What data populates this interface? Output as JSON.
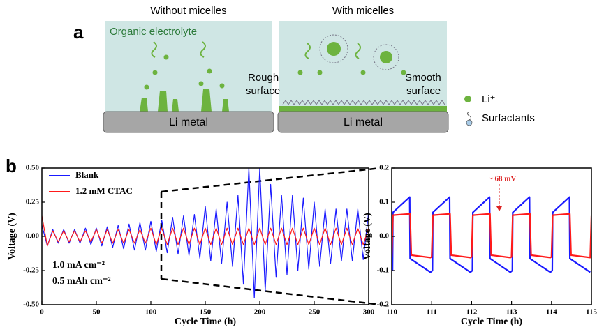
{
  "diagram": {
    "label_a": "a",
    "label_b": "b",
    "left_panel": {
      "title": "Without micelles",
      "electrolyte": "Organic electrolyte",
      "surface": [
        "Rough",
        "surface"
      ],
      "substrate": "Li metal"
    },
    "right_panel": {
      "title": "With micelles",
      "surface": [
        "Smooth",
        "surface"
      ],
      "substrate": "Li metal"
    },
    "legend": {
      "ion": "Li⁺",
      "surfactant": "Surfactants"
    }
  },
  "chart_data": [
    {
      "type": "line",
      "x_label": "Cycle Time (h)",
      "y_label": "Voltage (V)",
      "annotations": [
        "1.0 mA cm⁻²",
        "0.5 mAh cm⁻²"
      ],
      "x": [
        0,
        5,
        10,
        15,
        20,
        25,
        30,
        35,
        40,
        45,
        50,
        55,
        60,
        65,
        70,
        75,
        80,
        85,
        90,
        95,
        100,
        105,
        110,
        115,
        120,
        125,
        130,
        135,
        140,
        145,
        150,
        155,
        160,
        165,
        170,
        175,
        180,
        185,
        190,
        195,
        200,
        205,
        210,
        215,
        220,
        225,
        230,
        235,
        240,
        245,
        250,
        255,
        260,
        265,
        270,
        275,
        280,
        285,
        290,
        295,
        300
      ],
      "series": [
        {
          "name": "Blank",
          "color": "#1a1aff",
          "values": [
            0.08,
            -0.07,
            0.05,
            -0.05,
            0.05,
            -0.05,
            0.05,
            -0.05,
            0.06,
            -0.06,
            0.06,
            -0.07,
            0.07,
            -0.08,
            0.08,
            -0.09,
            0.09,
            -0.1,
            0.1,
            -0.1,
            0.11,
            -0.11,
            0.12,
            -0.12,
            0.14,
            -0.13,
            0.15,
            -0.14,
            0.16,
            -0.16,
            0.22,
            -0.18,
            0.2,
            -0.2,
            0.25,
            -0.22,
            0.3,
            -0.35,
            0.5,
            -0.45,
            0.5,
            -0.4,
            0.38,
            -0.3,
            0.3,
            -0.28,
            0.3,
            -0.25,
            0.28,
            -0.24,
            0.25,
            -0.22,
            0.2,
            -0.2,
            0.2,
            -0.18,
            0.2,
            -0.18,
            0.2,
            -0.17,
            0.18
          ]
        },
        {
          "name": "1.2 mM CTAC",
          "color": "#ff1a1a",
          "values": [
            0.15,
            -0.07,
            0.04,
            -0.04,
            0.04,
            -0.04,
            0.04,
            -0.04,
            0.04,
            -0.04,
            0.05,
            -0.05,
            0.05,
            -0.05,
            0.05,
            -0.05,
            0.05,
            -0.05,
            0.05,
            -0.05,
            0.06,
            -0.06,
            0.06,
            -0.06,
            0.06,
            -0.06,
            0.06,
            -0.06,
            0.06,
            -0.06,
            0.06,
            -0.06,
            0.06,
            -0.06,
            0.06,
            -0.06,
            0.06,
            -0.06,
            0.06,
            -0.06,
            0.06,
            -0.06,
            0.06,
            -0.06,
            0.06,
            -0.06,
            0.06,
            -0.06,
            0.06,
            -0.06,
            0.06,
            -0.06,
            0.06,
            -0.06,
            0.06,
            -0.06,
            0.06,
            -0.06,
            0.06,
            -0.06,
            0.06
          ]
        }
      ],
      "xlim": [
        0,
        300
      ],
      "xticks": [
        0,
        50,
        100,
        150,
        200,
        250,
        300
      ],
      "ylim": [
        -0.5,
        0.5
      ],
      "yticks": [
        {
          "value": -0.5,
          "label": "-0.50"
        },
        {
          "value": -0.25,
          "label": "-0.25"
        },
        {
          "value": 0,
          "label": "0.00"
        },
        {
          "value": 0.25,
          "label": "0.25"
        },
        {
          "value": 0.5,
          "label": "0.50"
        }
      ],
      "legend": "upper left"
    },
    {
      "type": "line",
      "x_label": "Cycle Time (h)",
      "y_label": "Voltage (V)",
      "annotations": [
        "~ 68 mV"
      ],
      "series": [
        {
          "color": "#1a1aff",
          "x": [
            110.02,
            110.03,
            110.45,
            110.46,
            110.97,
            111.02,
            111.03,
            111.45,
            111.46,
            111.97,
            112.02,
            112.03,
            112.45,
            112.46,
            112.97,
            113.02,
            113.03,
            113.45,
            113.46,
            113.97,
            114.02,
            114.03,
            114.45,
            114.46,
            114.97
          ],
          "values": [
            -0.1,
            0.07,
            0.115,
            -0.065,
            -0.105,
            -0.1,
            0.07,
            0.115,
            -0.065,
            -0.105,
            -0.1,
            0.07,
            0.115,
            -0.065,
            -0.105,
            -0.1,
            0.07,
            0.115,
            -0.065,
            -0.105,
            -0.1,
            0.07,
            0.115,
            -0.065,
            -0.105
          ]
        },
        {
          "color": "#ff1a1a",
          "x": [
            110,
            110.03,
            110.46,
            110.49,
            110.97,
            111,
            111.03,
            111.46,
            111.49,
            111.97,
            112,
            112.03,
            112.46,
            112.49,
            112.97,
            113,
            113.03,
            113.46,
            113.49,
            113.97,
            114,
            114.03,
            114.46,
            114.49,
            114.97,
            115
          ],
          "values": [
            -0.06,
            0.062,
            0.066,
            -0.055,
            -0.062,
            -0.06,
            0.062,
            0.066,
            -0.055,
            -0.062,
            -0.06,
            0.062,
            0.066,
            -0.055,
            -0.062,
            -0.06,
            0.062,
            0.066,
            -0.055,
            -0.062,
            -0.06,
            0.062,
            0.066,
            -0.055,
            -0.062,
            0.06
          ]
        }
      ],
      "xlim": [
        110,
        115
      ],
      "xticks": [
        110,
        111,
        112,
        113,
        114,
        115
      ],
      "ylim": [
        -0.2,
        0.2
      ],
      "yticks": [
        -0.2,
        -0.1,
        {
          "value": 0,
          "label": "0.0"
        },
        0.1,
        0.2
      ]
    }
  ]
}
